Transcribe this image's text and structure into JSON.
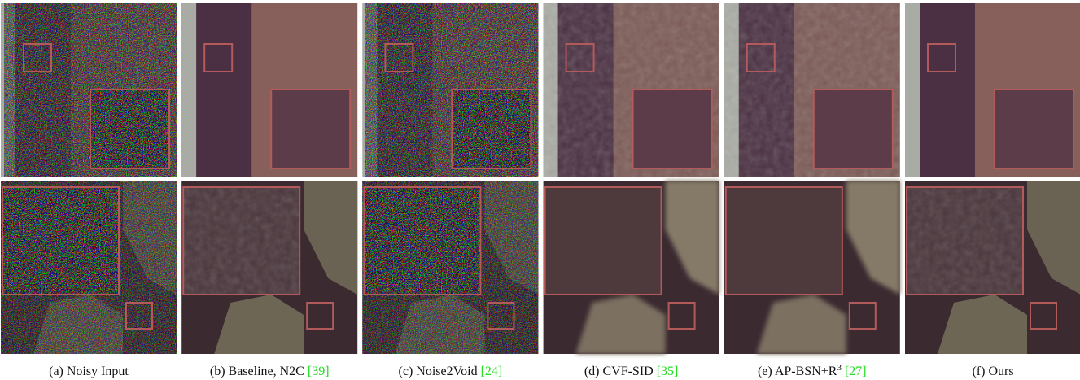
{
  "figure": {
    "panels": [
      {
        "caption": "(a) Noisy Input"
      },
      {
        "caption": "(b) Baseline, N2C",
        "citation": "[39]"
      },
      {
        "caption": "(c) Noise2Void",
        "citation": "[24]"
      },
      {
        "caption": "(d) CVF-SID",
        "citation": "[35]"
      },
      {
        "caption": "(e) AP-BSN+R",
        "superscript": "3",
        "citation": "[27]"
      },
      {
        "caption": "(f) Ours"
      }
    ]
  }
}
